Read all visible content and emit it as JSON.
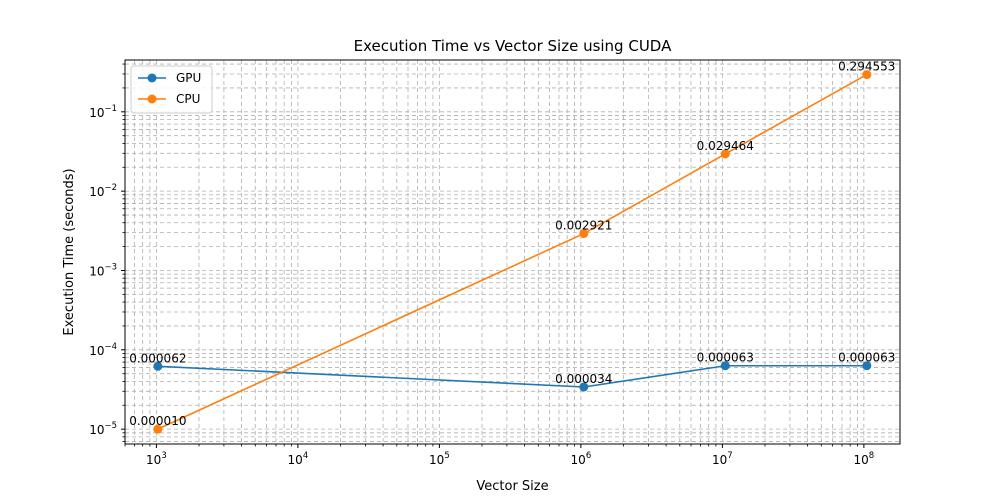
{
  "chart_data": {
    "type": "line",
    "title": "Execution Time vs Vector Size using CUDA",
    "xlabel": "Vector Size",
    "ylabel": "Execution Time (seconds)",
    "x_scale": "log",
    "y_scale": "log",
    "xlim": [
      600,
      180000000
    ],
    "ylim": [
      6.5e-06,
      0.45
    ],
    "grid": true,
    "grid_minor": true,
    "legend_position": "top-left",
    "x_ticks": [
      {
        "value": 1000,
        "base": "10",
        "exp": "3"
      },
      {
        "value": 10000,
        "base": "10",
        "exp": "4"
      },
      {
        "value": 100000,
        "base": "10",
        "exp": "5"
      },
      {
        "value": 1000000,
        "base": "10",
        "exp": "6"
      },
      {
        "value": 10000000,
        "base": "10",
        "exp": "7"
      },
      {
        "value": 100000000,
        "base": "10",
        "exp": "8"
      }
    ],
    "y_ticks": [
      {
        "value": 1e-05,
        "base": "10",
        "exp": "−5"
      },
      {
        "value": 0.0001,
        "base": "10",
        "exp": "−4"
      },
      {
        "value": 0.001,
        "base": "10",
        "exp": "−3"
      },
      {
        "value": 0.01,
        "base": "10",
        "exp": "−2"
      },
      {
        "value": 0.1,
        "base": "10",
        "exp": "−1"
      }
    ],
    "x": [
      1024,
      1048576,
      10485760,
      104857600
    ],
    "series": [
      {
        "name": "GPU",
        "color": "#1f77b4",
        "values": [
          6.2e-05,
          3.4e-05,
          6.3e-05,
          6.3e-05
        ],
        "labels": [
          "0.000062",
          "0.000034",
          "0.000063",
          "0.000063"
        ]
      },
      {
        "name": "CPU",
        "color": "#ff7f0e",
        "values": [
          1e-05,
          0.002921,
          0.029464,
          0.294553
        ],
        "labels": [
          "0.000010",
          "0.002921",
          "0.029464",
          "0.294553"
        ]
      }
    ]
  }
}
